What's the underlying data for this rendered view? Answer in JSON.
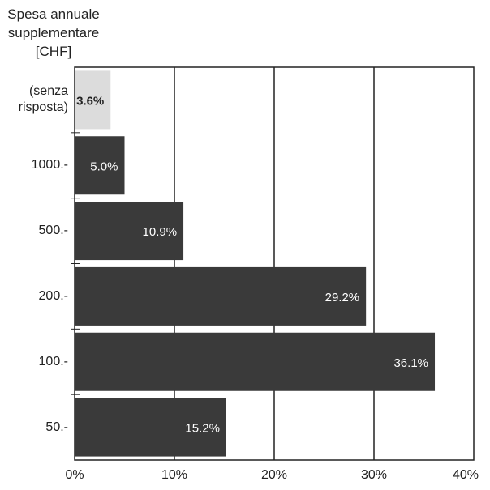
{
  "chart_data": {
    "type": "bar",
    "orientation": "horizontal",
    "title": "",
    "ylabel_lines": [
      "Spesa annuale",
      "supplementare",
      "[CHF]"
    ],
    "xlabel": "",
    "categories": [
      "(senza\nrisposta)",
      "1000.-",
      "500.-",
      "200.-",
      "100.-",
      "50.-"
    ],
    "values": [
      3.6,
      5.0,
      10.9,
      29.2,
      36.1,
      15.2
    ],
    "value_labels": [
      "3.6%",
      "5.0%",
      "10.9%",
      "29.2%",
      "36.1%",
      "15.2%"
    ],
    "xlim": [
      0,
      40
    ],
    "xticks": [
      "0%",
      "10%",
      "20%",
      "30%",
      "40%"
    ],
    "grid": "vertical",
    "colors": {
      "bar": "#3a3a3a",
      "bar_no_answer": "#dcdcdc",
      "label_on_dark": "#ffffff",
      "label_on_light": "#222222"
    }
  }
}
